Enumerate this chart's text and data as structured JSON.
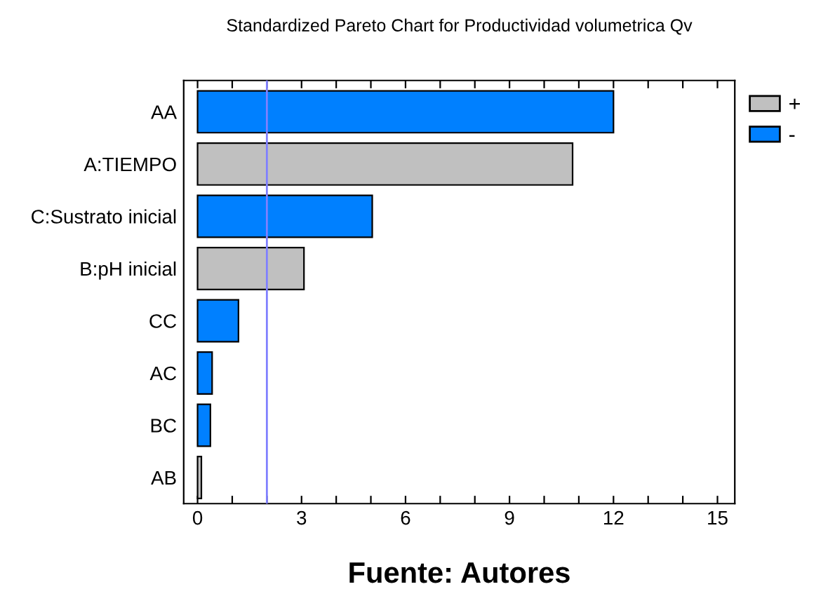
{
  "chart_data": {
    "type": "bar",
    "orientation": "horizontal",
    "title": "Standardized Pareto Chart for Productividad volumetrica Qv",
    "categories": [
      "AA",
      "A:TIEMPO",
      "C:Sustrato inicial",
      "B:pH inicial",
      "CC",
      "AC",
      "BC",
      "AB"
    ],
    "series": [
      {
        "name": "+",
        "color": "#c0c0c0",
        "values": [
          null,
          10.82,
          null,
          3.07,
          null,
          null,
          null,
          0.11
        ]
      },
      {
        "name": "-",
        "color": "#0080ff",
        "values": [
          12.0,
          null,
          5.04,
          null,
          1.18,
          0.42,
          0.37,
          null
        ]
      }
    ],
    "xlim": [
      -0.4,
      15.5
    ],
    "xticks": [
      0,
      {
        "value": 1,
        "label": null
      },
      {
        "value": 2,
        "label": null
      },
      3,
      {
        "value": 4,
        "label": null
      },
      {
        "value": 5,
        "label": null
      },
      6,
      {
        "value": 7,
        "label": null
      },
      {
        "value": 8,
        "label": null
      },
      9,
      {
        "value": 10,
        "label": null
      },
      {
        "value": 11,
        "label": null
      },
      12,
      {
        "value": 13,
        "label": null
      },
      {
        "value": 14,
        "label": null
      },
      15
    ],
    "ref_lines": [
      {
        "axis": "x",
        "value": 2.0,
        "color": "#8080ff"
      }
    ],
    "legend": "top right",
    "grid": false,
    "annotations": [
      "Fuente: Autores"
    ]
  }
}
